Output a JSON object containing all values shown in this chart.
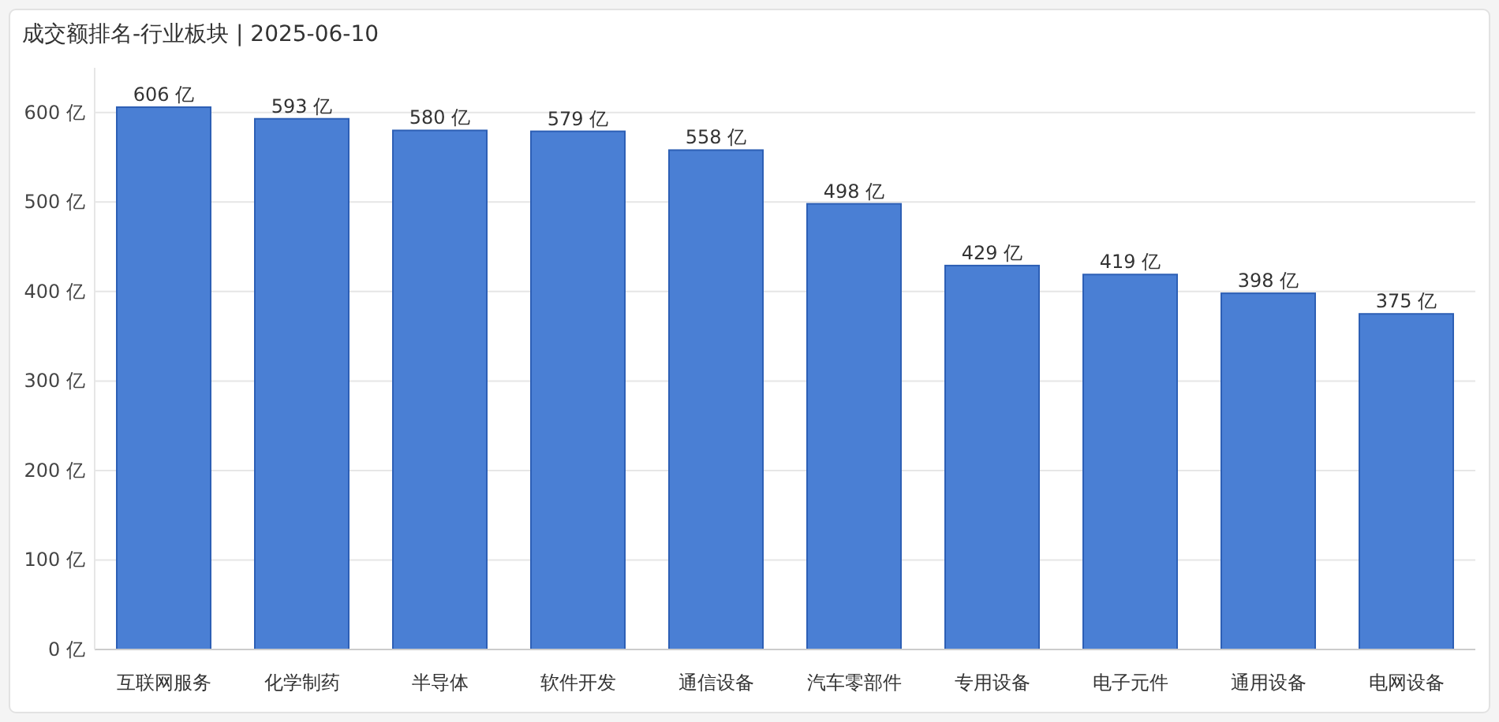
{
  "chart_data": {
    "type": "bar",
    "title": "成交额排名-行业板块 | 2025-06-10",
    "categories": [
      "互联网服务",
      "化学制药",
      "半导体",
      "软件开发",
      "通信设备",
      "汽车零部件",
      "专用设备",
      "电子元件",
      "通用设备",
      "电网设备"
    ],
    "values": [
      606,
      593,
      580,
      579,
      558,
      498,
      429,
      419,
      398,
      375
    ],
    "value_labels": [
      "606 亿",
      "593 亿",
      "580 亿",
      "579 亿",
      "558 亿",
      "498 亿",
      "429 亿",
      "419 亿",
      "398 亿",
      "375 亿"
    ],
    "color": "#4a7fd4",
    "ylim": [
      0,
      650
    ],
    "yticks": [
      {
        "value": 0,
        "label": "0 亿"
      },
      {
        "value": 100,
        "label": "100 亿"
      },
      {
        "value": 200,
        "label": "200 亿"
      },
      {
        "value": 300,
        "label": "300 亿"
      },
      {
        "value": 400,
        "label": "400 亿"
      },
      {
        "value": 500,
        "label": "500 亿"
      },
      {
        "value": 600,
        "label": "600 亿"
      }
    ],
    "grid": "y"
  }
}
